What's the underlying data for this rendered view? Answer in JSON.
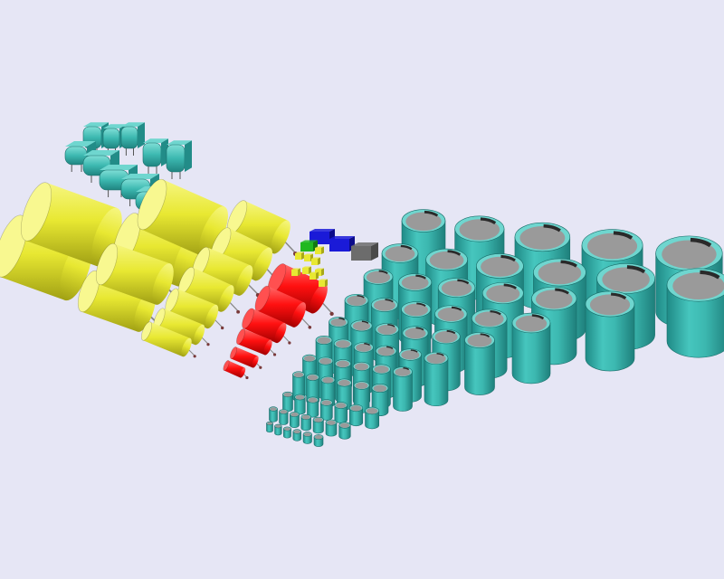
{
  "colors": {
    "background": "#e6e6f5",
    "teal_body": "#3cb8b0",
    "teal_dark": "#228c88",
    "teal_light": "#6fd6cf",
    "top_cap": "#9a9a9a",
    "top_ring": "#2a2a2a",
    "yellow_body": "#e8e832",
    "yellow_dark": "#a8a818",
    "yellow_light": "#f8f890",
    "red_body": "#ff1010",
    "red_dark": "#a80000",
    "blue": "#1a1ad8",
    "green": "#20b820",
    "gray": "#6c6c6c",
    "lead": "#7a3a3a"
  },
  "groups": [
    {
      "name": "teal-box-capacitors",
      "count": 10
    },
    {
      "name": "yellow-axial-capacitors",
      "count": 10
    },
    {
      "name": "red-axial-capacitors",
      "count": 6
    },
    {
      "name": "small-block-components",
      "count": 12
    },
    {
      "name": "teal-radial-electrolytic-capacitors",
      "count": 78
    }
  ]
}
